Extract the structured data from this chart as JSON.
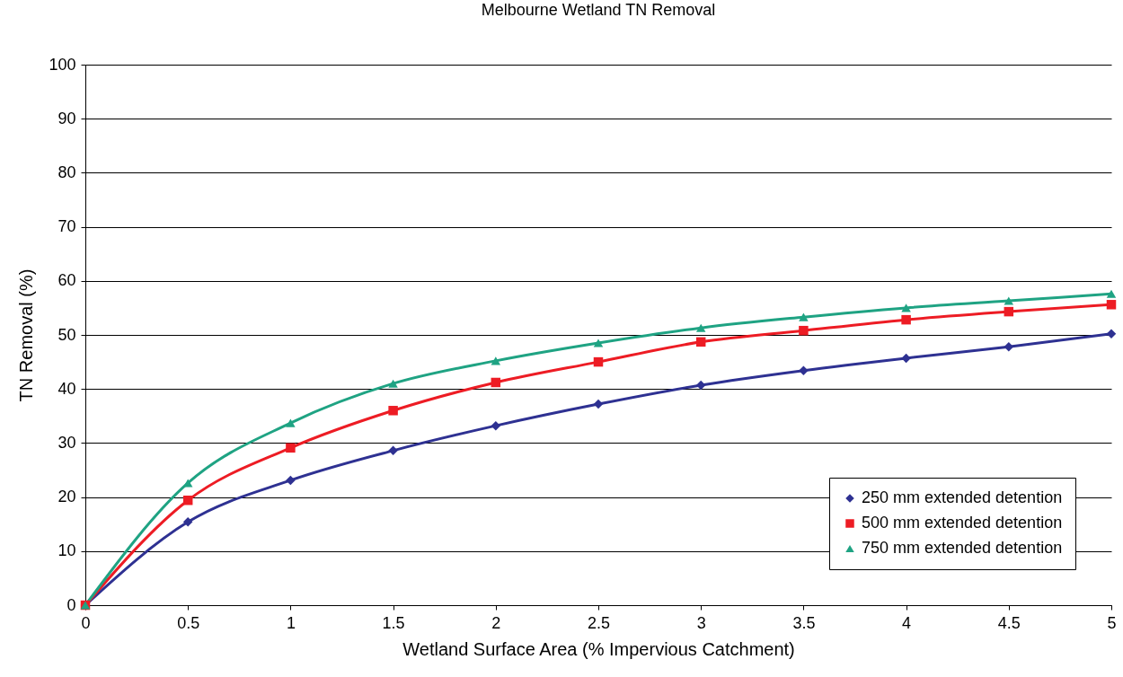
{
  "chart_data": {
    "type": "line",
    "title": "Melbourne Wetland TN Removal",
    "xlabel": "Wetland Surface Area (% Impervious Catchment)",
    "ylabel": "TN Removal (%)",
    "x": [
      0,
      0.5,
      1,
      1.5,
      2,
      2.5,
      3,
      3.5,
      4,
      4.5,
      5
    ],
    "series": [
      {
        "name": "250 mm extended detention",
        "color": "#2e3192",
        "marker": "diamond",
        "values": [
          0,
          15.4,
          23.1,
          28.6,
          33.2,
          37.2,
          40.7,
          43.4,
          45.7,
          47.8,
          50.2
        ]
      },
      {
        "name": "500 mm extended detention",
        "color": "#ed1c24",
        "marker": "square",
        "values": [
          0,
          19.4,
          29.1,
          36.0,
          41.2,
          45.0,
          48.7,
          50.8,
          52.8,
          54.3,
          55.6
        ]
      },
      {
        "name": "750 mm extended detention",
        "color": "#1fa383",
        "marker": "triangle",
        "values": [
          0,
          22.6,
          33.7,
          41.0,
          45.2,
          48.5,
          51.3,
          53.3,
          55.0,
          56.3,
          57.6
        ]
      }
    ],
    "xlim": [
      0,
      5
    ],
    "xticks": [
      0,
      0.5,
      1,
      1.5,
      2,
      2.5,
      3,
      3.5,
      4,
      4.5,
      5
    ],
    "ylim": [
      0,
      100
    ],
    "yticks": [
      0,
      10,
      20,
      30,
      40,
      50,
      60,
      70,
      80,
      90,
      100
    ],
    "grid": "y",
    "legend": "bottom right",
    "line_style": "solid"
  }
}
